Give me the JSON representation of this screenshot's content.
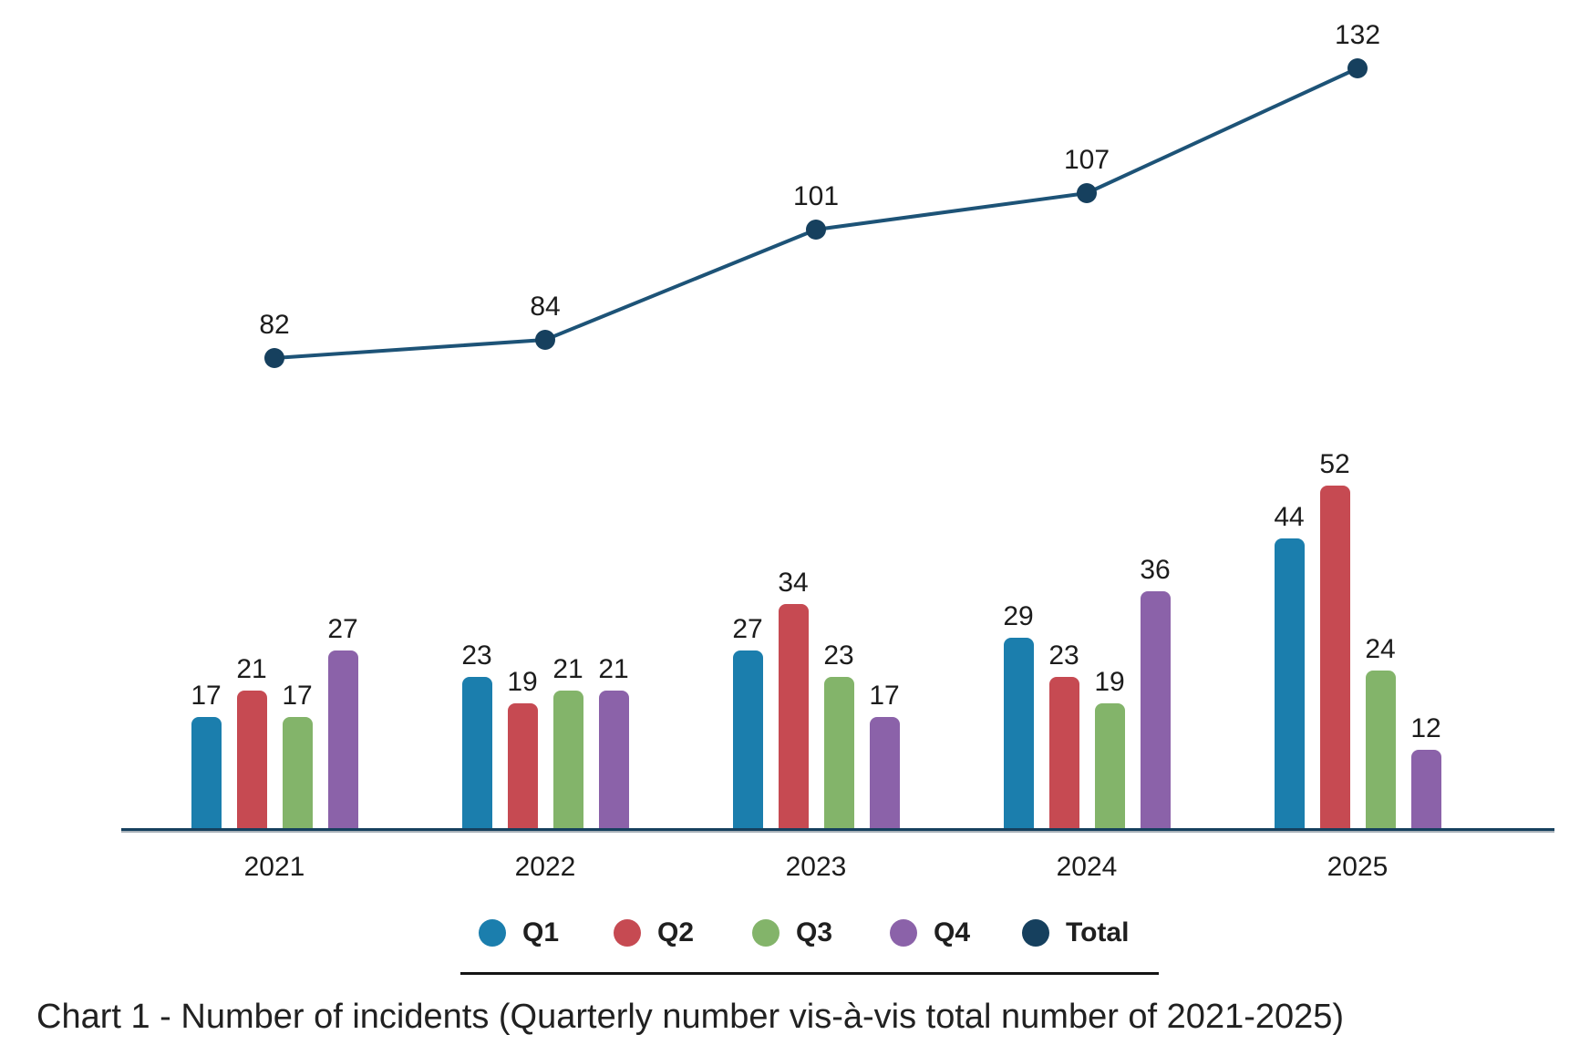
{
  "chart_data": {
    "type": "bar",
    "subtype": "grouped-bars-with-total-line",
    "categories": [
      "2021",
      "2022",
      "2023",
      "2024",
      "2025"
    ],
    "series": [
      {
        "name": "Q1",
        "type": "bar",
        "color": "#1b7ead",
        "values": [
          17,
          23,
          27,
          29,
          44
        ]
      },
      {
        "name": "Q2",
        "type": "bar",
        "color": "#c64a52",
        "values": [
          21,
          19,
          34,
          23,
          52
        ]
      },
      {
        "name": "Q3",
        "type": "bar",
        "color": "#83b46a",
        "values": [
          17,
          21,
          23,
          19,
          24
        ]
      },
      {
        "name": "Q4",
        "type": "bar",
        "color": "#8b62a9",
        "values": [
          27,
          21,
          17,
          36,
          12
        ]
      },
      {
        "name": "Total",
        "type": "line",
        "color": "#16405e",
        "values": [
          82,
          84,
          101,
          107,
          132
        ]
      }
    ],
    "line_stroke_color": "#1d5377",
    "caption": "Chart 1 - Number of incidents (Quarterly number vis-à-vis total number of 2021-2025)",
    "legend_position": "bottom",
    "data_labels": true,
    "gridlines": false,
    "y_axis_visible": false,
    "x_axis_line_color": "#16405e",
    "ylim_bars": [
      0,
      60
    ],
    "ylim_line": [
      0,
      145
    ]
  }
}
